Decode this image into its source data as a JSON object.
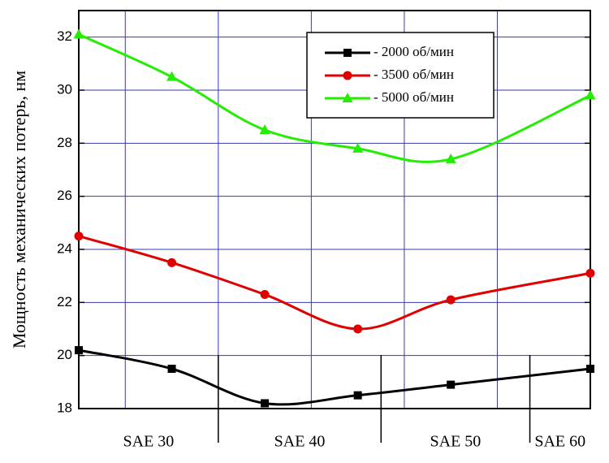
{
  "chart_data": {
    "type": "line",
    "y_label": "Мощность механических потерь, нм",
    "x": [
      0,
      1,
      2,
      3,
      4,
      5.5
    ],
    "xlim": [
      0,
      5.5
    ],
    "xticks": [
      0.5,
      1.5,
      2.5,
      3.5,
      4.5
    ],
    "ylim": [
      18,
      33
    ],
    "yticks": [
      18,
      20,
      22,
      24,
      26,
      28,
      30,
      32
    ],
    "grid": true,
    "grid_color": "#3a3aa8",
    "groups": [
      {
        "label": "SAE 30",
        "from": 0,
        "to": 1.5
      },
      {
        "label": "SAE 40",
        "from": 1.5,
        "to": 3.25
      },
      {
        "label": "SAE 50",
        "from": 3.25,
        "to": 4.85
      },
      {
        "label": "SAE 60",
        "from": 4.85,
        "to": 5.5
      }
    ],
    "legend_position": "upper right",
    "series": [
      {
        "name": "- 2000 об/мин",
        "color": "#000000",
        "marker": "square",
        "values": [
          20.2,
          19.5,
          18.2,
          18.5,
          18.9,
          19.5
        ]
      },
      {
        "name": "- 3500 об/мин",
        "color": "#e00000",
        "marker": "circle",
        "values": [
          24.5,
          23.5,
          22.3,
          21.0,
          22.1,
          23.1
        ]
      },
      {
        "name": "- 5000 об/мин",
        "color": "#22ee00",
        "marker": "triangle",
        "values": [
          32.1,
          30.5,
          28.5,
          27.8,
          27.4,
          29.8
        ]
      }
    ]
  }
}
